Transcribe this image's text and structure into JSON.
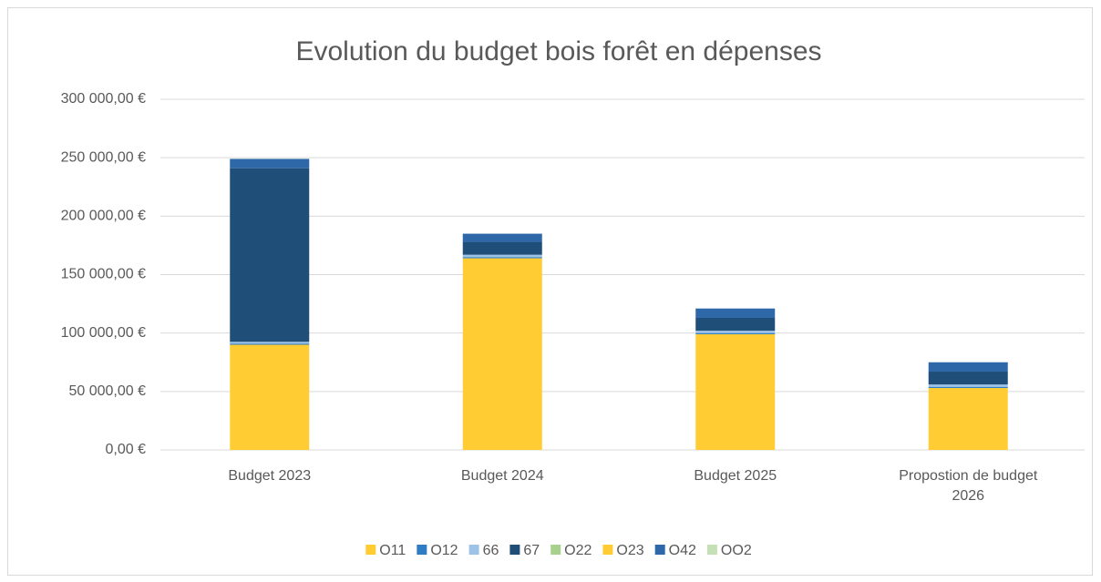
{
  "chart_data": {
    "type": "stacked_bar",
    "title": "Evolution du budget bois forêt  en dépenses",
    "categories": [
      "Budget 2023",
      "Budget 2024",
      "Budget 2025",
      "Propostion de budget 2026"
    ],
    "series": [
      {
        "name": "O11",
        "color": "#ffcd33",
        "values": [
          90000,
          164000,
          99000,
          53000
        ]
      },
      {
        "name": "O12",
        "color": "#2e7dc4",
        "values": [
          1000,
          1000,
          1000,
          1000
        ]
      },
      {
        "name": "66",
        "color": "#9dc3e6",
        "values": [
          1500,
          2000,
          2000,
          2000
        ]
      },
      {
        "name": "67",
        "color": "#1f4e79",
        "values": [
          148500,
          11000,
          11000,
          11000
        ]
      },
      {
        "name": "O22",
        "color": "#a9d18e",
        "values": [
          0,
          0,
          0,
          0
        ]
      },
      {
        "name": "O23",
        "color": "#ffcd33",
        "values": [
          0,
          0,
          0,
          0
        ]
      },
      {
        "name": "O42",
        "color": "#2e68a8",
        "values": [
          8000,
          7000,
          8000,
          8000
        ]
      },
      {
        "name": "OO2",
        "color": "#c5e0b4",
        "values": [
          0,
          0,
          0,
          0
        ]
      }
    ],
    "ylim": [
      0,
      300000
    ],
    "yticks": [
      {
        "value": 0,
        "label": "0,00 €"
      },
      {
        "value": 50000,
        "label": "50 000,00 €"
      },
      {
        "value": 100000,
        "label": "100 000,00 €"
      },
      {
        "value": 150000,
        "label": "150 000,00 €"
      },
      {
        "value": 200000,
        "label": "200 000,00 €"
      },
      {
        "value": 250000,
        "label": "250 000,00 €"
      },
      {
        "value": 300000,
        "label": "300 000,00 €"
      }
    ],
    "grid": true,
    "legend": "bottom"
  }
}
